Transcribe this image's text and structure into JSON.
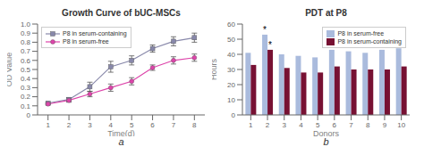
{
  "chart_data": [
    {
      "type": "line",
      "title": "Growth Curve of bUC-MSCs",
      "subtitle": "a",
      "xlabel": "Time(d)",
      "ylabel": "OD Value",
      "x": [
        1,
        2,
        3,
        4,
        5,
        6,
        7,
        8
      ],
      "xlim": [
        0.5,
        8.5
      ],
      "xticks": [
        1,
        2,
        3,
        4,
        5,
        6,
        7,
        8
      ],
      "ylim": [
        0,
        1.0
      ],
      "yticks": [
        0,
        0.1,
        0.2,
        0.3,
        0.4,
        0.5,
        0.6,
        0.7,
        0.8,
        0.9,
        {
          "value": 1.0,
          "label": "1.0"
        }
      ],
      "grid": false,
      "legend": "upper left",
      "series": [
        {
          "name": "P8 in serum-containing",
          "color": "#8888AA",
          "marker": "square",
          "values": [
            0.13,
            0.17,
            0.31,
            0.53,
            0.6,
            0.73,
            0.81,
            0.85
          ],
          "error": [
            0.01,
            0.02,
            0.05,
            0.06,
            0.05,
            0.04,
            0.05,
            0.05
          ]
        },
        {
          "name": "P8 in serum-free",
          "color": "#DD44AA",
          "marker": "circle",
          "values": [
            0.12,
            0.16,
            0.23,
            0.3,
            0.37,
            0.52,
            0.6,
            0.63
          ],
          "error": [
            0.01,
            0.02,
            0.03,
            0.04,
            0.04,
            0.03,
            0.04,
            0.04
          ]
        }
      ]
    },
    {
      "type": "bar",
      "title": "PDT at P8",
      "subtitle": "b",
      "xlabel": "Donors",
      "ylabel": "Hours",
      "categories": [
        "1",
        "2",
        "3",
        "4",
        "5",
        "6",
        "7",
        "8",
        "9",
        "10"
      ],
      "ylim": [
        0,
        60
      ],
      "yticks": [
        0,
        10,
        20,
        30,
        40,
        50,
        60
      ],
      "grid": false,
      "legend": "upper right",
      "series": [
        {
          "name": "P8 in serum-free",
          "color": "#AABBDD",
          "values": [
            41,
            53,
            40,
            39,
            38,
            43,
            42,
            41,
            43,
            44
          ]
        },
        {
          "name": "P8 in serum-containing",
          "color": "#771133",
          "values": [
            33,
            43,
            31,
            28,
            28,
            32,
            30,
            30,
            30,
            32
          ]
        }
      ],
      "annotations": [
        {
          "text": "*",
          "category": "2",
          "series": "P8 in serum-free"
        },
        {
          "text": "*",
          "category": "2",
          "series": "P8 in serum-containing"
        }
      ]
    }
  ]
}
